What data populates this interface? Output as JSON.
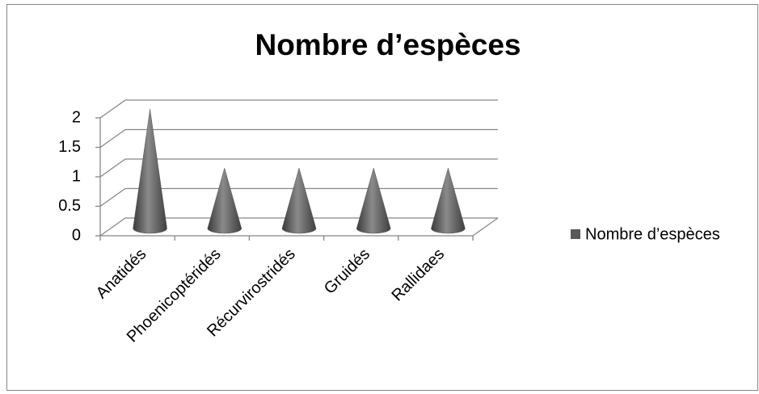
{
  "chart_data": {
    "type": "bar",
    "title": "Nombre d’espèces",
    "categories": [
      "Anatidés",
      "Phoenicoptéridés",
      "Récurvirostridés",
      "Gruidés",
      "Rallidaes"
    ],
    "series": [
      {
        "name": "Nombre d’espèces",
        "color": "#595959",
        "values": [
          2,
          1,
          1,
          1,
          1
        ]
      }
    ],
    "ylim": [
      0,
      2
    ],
    "yticks": [
      0,
      0.5,
      1,
      1.5,
      2
    ],
    "grid": true,
    "legend": "right"
  }
}
